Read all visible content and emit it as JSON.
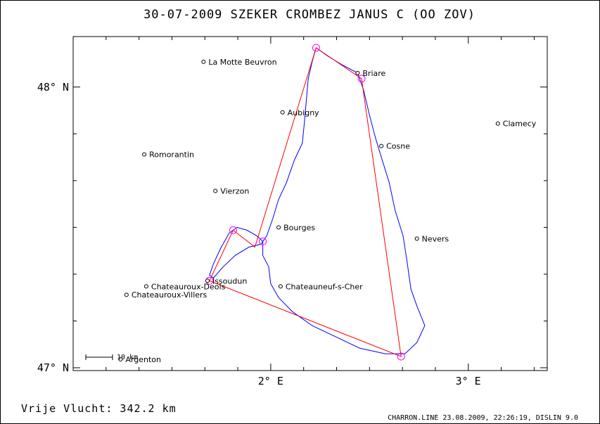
{
  "header": {
    "title": "30-07-2009   SZEKER CROMBEZ   JANUS C (OO ZOV)"
  },
  "footer": {
    "distance_label": "Vrije Vlucht:  342.2 km",
    "credit": "CHARRON.LINE 23.08.2009, 22:26:19, DISLIN 9.0"
  },
  "chart_data": {
    "type": "map",
    "x_axis": {
      "unit": "longitude (deg E)",
      "range": [
        1.0,
        3.4
      ],
      "ticks": [
        {
          "value": 2.0,
          "label": "2° E"
        },
        {
          "value": 3.0,
          "label": "3° E"
        }
      ]
    },
    "y_axis": {
      "unit": "latitude (deg N)",
      "range": [
        46.99,
        48.18
      ],
      "ticks": [
        {
          "value": 47.0,
          "label": "47° N"
        },
        {
          "value": 48.0,
          "label": "48° N"
        }
      ]
    },
    "scale_bar": {
      "label": "10 km"
    },
    "colors": {
      "track": "#0000ff",
      "route": "#ff0000",
      "turnpoint": "#ff00ff",
      "text": "#000000"
    },
    "cities": [
      {
        "name": "La Motte Beuvron",
        "lon": 1.66,
        "lat": 48.09
      },
      {
        "name": "Briare",
        "lon": 2.44,
        "lat": 48.05
      },
      {
        "name": "Aubigny",
        "lon": 2.06,
        "lat": 47.91
      },
      {
        "name": "Clamecy",
        "lon": 3.15,
        "lat": 47.87
      },
      {
        "name": "Cosne",
        "lon": 2.56,
        "lat": 47.79
      },
      {
        "name": "Romorantin",
        "lon": 1.36,
        "lat": 47.76
      },
      {
        "name": "Vierzon",
        "lon": 1.72,
        "lat": 47.63
      },
      {
        "name": "Bourges",
        "lon": 2.04,
        "lat": 47.5
      },
      {
        "name": "Nevers",
        "lon": 2.74,
        "lat": 47.46
      },
      {
        "name": "Issoudun",
        "lon": 1.68,
        "lat": 47.31
      },
      {
        "name": "Chateauroux-Deols",
        "lon": 1.37,
        "lat": 47.29
      },
      {
        "name": "Chateauneuf-s-Cher",
        "lon": 2.05,
        "lat": 47.29
      },
      {
        "name": "Chateauroux-Villers",
        "lon": 1.27,
        "lat": 47.26
      },
      {
        "name": "Argenton",
        "lon": 1.24,
        "lat": 47.03
      }
    ],
    "turnpoints": [
      {
        "lon": 2.23,
        "lat": 48.14
      },
      {
        "lon": 2.46,
        "lat": 48.03
      },
      {
        "lon": 2.66,
        "lat": 47.04
      },
      {
        "lon": 1.81,
        "lat": 47.49
      },
      {
        "lon": 1.96,
        "lat": 47.45
      },
      {
        "lon": 1.69,
        "lat": 47.31
      }
    ],
    "route": [
      [
        2.23,
        48.14
      ],
      [
        2.46,
        48.03
      ],
      [
        2.66,
        47.04
      ],
      [
        1.69,
        47.31
      ],
      [
        1.81,
        47.49
      ],
      [
        1.92,
        47.43
      ],
      [
        2.23,
        48.14
      ]
    ],
    "track": [
      [
        1.96,
        47.45
      ],
      [
        1.93,
        47.47
      ],
      [
        1.88,
        47.49
      ],
      [
        1.83,
        47.5
      ],
      [
        1.79,
        47.48
      ],
      [
        1.75,
        47.43
      ],
      [
        1.71,
        47.37
      ],
      [
        1.69,
        47.33
      ],
      [
        1.71,
        47.32
      ],
      [
        1.76,
        47.36
      ],
      [
        1.82,
        47.4
      ],
      [
        1.89,
        47.43
      ],
      [
        1.95,
        47.44
      ],
      [
        1.98,
        47.47
      ],
      [
        2.01,
        47.53
      ],
      [
        2.04,
        47.6
      ],
      [
        2.08,
        47.66
      ],
      [
        2.12,
        47.74
      ],
      [
        2.16,
        47.8
      ],
      [
        2.17,
        47.87
      ],
      [
        2.18,
        47.95
      ],
      [
        2.19,
        48.03
      ],
      [
        2.21,
        48.09
      ],
      [
        2.23,
        48.14
      ],
      [
        2.29,
        48.11
      ],
      [
        2.36,
        48.08
      ],
      [
        2.44,
        48.05
      ],
      [
        2.47,
        47.99
      ],
      [
        2.5,
        47.9
      ],
      [
        2.53,
        47.82
      ],
      [
        2.56,
        47.75
      ],
      [
        2.6,
        47.66
      ],
      [
        2.63,
        47.56
      ],
      [
        2.67,
        47.47
      ],
      [
        2.69,
        47.38
      ],
      [
        2.71,
        47.28
      ],
      [
        2.74,
        47.22
      ],
      [
        2.78,
        47.15
      ],
      [
        2.74,
        47.09
      ],
      [
        2.68,
        47.05
      ],
      [
        2.58,
        47.05
      ],
      [
        2.45,
        47.07
      ],
      [
        2.33,
        47.11
      ],
      [
        2.21,
        47.15
      ],
      [
        2.11,
        47.2
      ],
      [
        2.04,
        47.25
      ],
      [
        2.0,
        47.3
      ],
      [
        1.99,
        47.36
      ],
      [
        1.96,
        47.4
      ],
      [
        1.96,
        47.45
      ]
    ]
  }
}
